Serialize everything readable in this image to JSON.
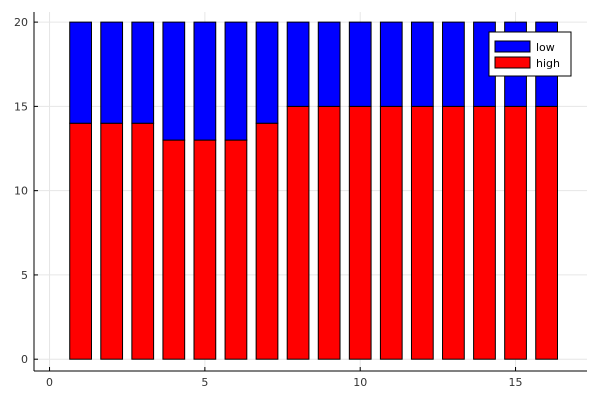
{
  "chart_data": {
    "type": "bar",
    "stacked": true,
    "x": [
      1,
      2,
      3,
      4,
      5,
      6,
      7,
      8,
      9,
      10,
      11,
      12,
      13,
      14,
      15,
      16
    ],
    "series": [
      {
        "name": "high",
        "color": "#ff0000",
        "values": [
          14,
          14,
          14,
          13,
          13,
          13,
          14,
          15,
          15,
          15,
          15,
          15,
          15,
          15,
          15,
          15
        ]
      },
      {
        "name": "low",
        "color": "#0000ff",
        "values": [
          6,
          6,
          6,
          7,
          7,
          7,
          6,
          5,
          5,
          5,
          5,
          5,
          5,
          5,
          5,
          5
        ]
      }
    ],
    "xlim": [
      -0.5,
      17.3
    ],
    "ylim": [
      -0.7,
      20.6
    ],
    "xticks": [
      0,
      5,
      10,
      15
    ],
    "yticks": [
      0,
      5,
      10,
      15,
      20
    ],
    "xtick_labels": [
      "0",
      "5",
      "10",
      "15"
    ],
    "ytick_labels": [
      "0",
      "5",
      "10",
      "15",
      "20"
    ],
    "xlabel": "",
    "ylabel": "",
    "title": "",
    "grid": true,
    "legend": {
      "position": "top-right",
      "entries": [
        {
          "label": "low",
          "color": "#0000ff"
        },
        {
          "label": "high",
          "color": "#ff0000"
        }
      ]
    }
  }
}
